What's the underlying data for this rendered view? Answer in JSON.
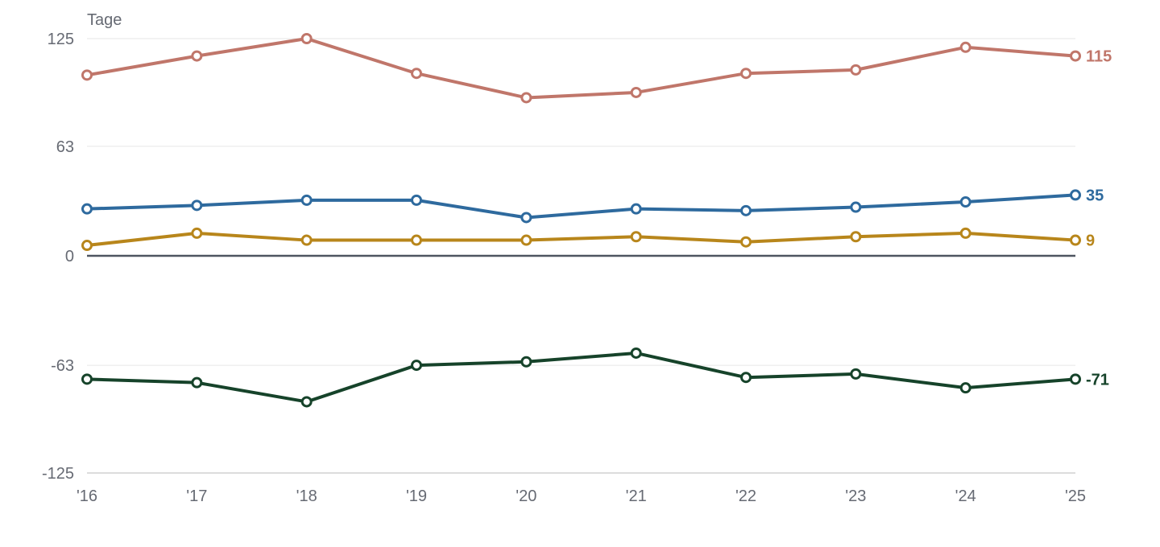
{
  "chart_data": {
    "type": "line",
    "ylabel": "Tage",
    "x": [
      "'16",
      "'17",
      "'18",
      "'19",
      "'20",
      "'21",
      "'22",
      "'23",
      "'24",
      "'25"
    ],
    "ylim": [
      -125,
      125
    ],
    "yticks": [
      125,
      63,
      0,
      -63,
      -125
    ],
    "grid": true,
    "legend": "none",
    "series": [
      {
        "color": "#c0766a",
        "end_label": "115",
        "values": [
          104,
          115,
          125,
          105,
          91,
          94,
          105,
          107,
          120,
          115
        ]
      },
      {
        "color": "#2e6a9e",
        "end_label": "35",
        "values": [
          27,
          29,
          32,
          32,
          22,
          27,
          26,
          28,
          31,
          35
        ]
      },
      {
        "color": "#b8861b",
        "end_label": "9",
        "values": [
          6,
          13,
          9,
          9,
          9,
          11,
          8,
          11,
          13,
          9
        ]
      },
      {
        "color": "#16432a",
        "end_label": "-71",
        "values": [
          -71,
          -73,
          -84,
          -63,
          -61,
          -56,
          -70,
          -68,
          -76,
          -71
        ]
      }
    ]
  }
}
